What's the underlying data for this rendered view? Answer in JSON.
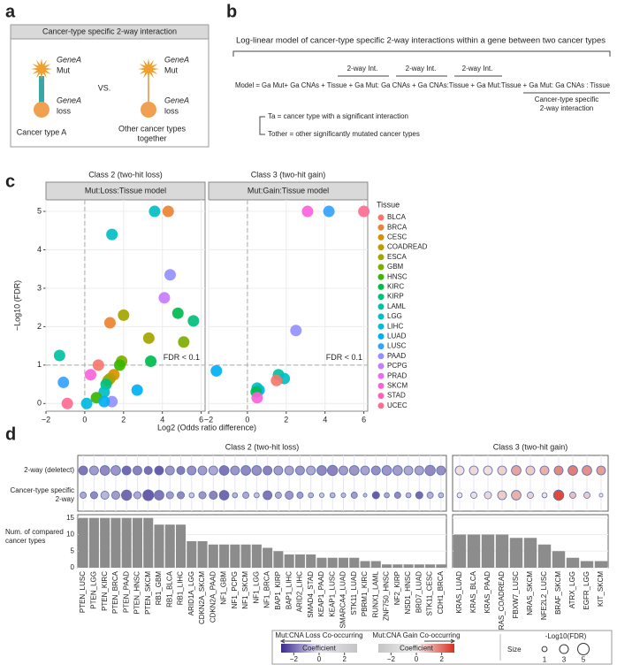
{
  "panel_a": {
    "label": "a",
    "header": "Cancer-type specific 2-way interaction",
    "left": {
      "mut_gene": "GeneA",
      "mut": "Mut",
      "loss_gene": "GeneA",
      "loss": "loss",
      "caption": [
        "Cancer type A"
      ]
    },
    "vs": "VS.",
    "right": {
      "mut_gene": "GeneA",
      "mut": "Mut",
      "loss_gene": "GeneA",
      "loss": "loss",
      "caption": [
        "Other cancer types",
        "together"
      ]
    }
  },
  "panel_b": {
    "label": "b",
    "title": "Log-linear model of cancer-type specific 2-way interactions within a gene between two cancer types",
    "int_labels": [
      "2-way Int.",
      "2-way Int.",
      "2-way Int."
    ],
    "model": "Model = Ga Mut+ Ga CNAs + Tissue + Ga Mut: Ga CNAs + Ga CNAs:Tissue + Ga Mut:Tissue + Ga Mut: Ga CNAs : Tissue",
    "specific": [
      "Cancer-type specific",
      "2-way interaction"
    ],
    "ta": "Ta = cancer type with a significant interaction",
    "tother": "Tother = other significantly mutated cancer types"
  },
  "panel_c_label": "c",
  "panel_d_label": "d",
  "chart_data": [
    {
      "type": "scatter",
      "xlabel": "Log2 (Odds ratio difference)",
      "ylabel": "−Log10 (FDR)",
      "xlim": [
        -2,
        6.2
      ],
      "ylim": [
        -0.2,
        5.3
      ],
      "xticks": [
        {
          "value": -2,
          "label": "−2"
        },
        0,
        2,
        4,
        6
      ],
      "yticks": [
        0,
        1,
        2,
        3,
        4,
        5
      ],
      "reference_lines": {
        "x": 0,
        "y": 1
      },
      "grid": true,
      "legend": {
        "title": "Tissue",
        "names": [
          "BLCA",
          "BRCA",
          "CESC",
          "COADREAD",
          "ESCA",
          "GBM",
          "HNSC",
          "KIRC",
          "KIRP",
          "LAML",
          "LGG",
          "LIHC",
          "LUAD",
          "LUSC",
          "PAAD",
          "PCPG",
          "PRAD",
          "SKCM",
          "STAD",
          "UCEC"
        ],
        "colors": [
          "#F8766D",
          "#EA8331",
          "#D89000",
          "#C09B00",
          "#A3A500",
          "#7CAE00",
          "#39B600",
          "#00BB4E",
          "#00BF7D",
          "#00C1A3",
          "#00BFC4",
          "#00BAE0",
          "#00B0F6",
          "#35A2FF",
          "#9590FF",
          "#C77CFF",
          "#E76BF3",
          "#FA62DB",
          "#FF62BC",
          "#FF6C91"
        ]
      },
      "facets": [
        {
          "title": "Class 2 (two-hit loss)",
          "strip": "Mut:Loss:Tissue model",
          "annotation": "FDR < 0.1",
          "x": [
            3.6,
            4.3,
            1.4,
            4.4,
            4.1,
            4.8,
            5.6,
            2.0,
            1.3,
            3.3,
            5.1,
            0.7,
            1.9,
            1.8,
            3.4,
            -1.3,
            -1.1,
            0.3,
            2.7,
            1.5,
            1.3,
            1.2,
            1.1,
            1.0,
            0.6,
            1.4,
            -0.9,
            0.1,
            1.0
          ],
          "y": [
            5.0,
            5.0,
            4.4,
            3.35,
            2.75,
            2.35,
            2.15,
            2.3,
            2.1,
            1.7,
            1.6,
            1.0,
            1.1,
            1.0,
            1.1,
            1.25,
            0.55,
            0.75,
            0.35,
            0.75,
            0.65,
            0.6,
            0.5,
            0.3,
            0.15,
            0.05,
            0.0,
            0.0,
            0.05
          ],
          "tissue": [
            "LGG",
            "BRCA",
            "LGG",
            "PAAD",
            "PCPG",
            "KIRC",
            "KIRP",
            "ESCA",
            "BRCA",
            "ESCA",
            "GBM",
            "BLCA",
            "GBM",
            "HNSC",
            "KIRC",
            "LAML",
            "LUSC",
            "SKCM",
            "LUAD",
            "CESC",
            "COADREAD",
            "ESCA",
            "KIRP",
            "LGG",
            "HNSC",
            "PAAD",
            "UCEC",
            "LIHC",
            "LUAD"
          ]
        },
        {
          "title": "Class 3 (two-hit gain)",
          "strip": "Mut:Gain:Tissue model",
          "annotation": "FDR < 0.1",
          "x": [
            6.0,
            3.1,
            4.2,
            2.5,
            1.6,
            1.9,
            1.5,
            -1.6,
            0.6,
            0.5,
            0.45,
            0.5
          ],
          "y": [
            5.0,
            5.0,
            5.0,
            1.9,
            0.75,
            0.65,
            0.6,
            0.85,
            0.35,
            0.4,
            0.3,
            0.15
          ],
          "tissue": [
            "UCEC",
            "SKCM",
            "LUSC",
            "PAAD",
            "LAML",
            "LGG",
            "BLCA",
            "LUAD",
            "LUAD",
            "LGG",
            "KIRC",
            "SKCM"
          ]
        }
      ]
    },
    {
      "type": "dotplot",
      "bar_label": [
        "Num. of compared",
        "cancer types"
      ],
      "bar_ylim": [
        0,
        16
      ],
      "bar_yticks": [
        0,
        5,
        10,
        15
      ],
      "bar_color": "#8c8c8c",
      "row_labels": [
        [
          "2-way (deletect)"
        ],
        [
          "Cancer-type specific",
          "2-way"
        ]
      ],
      "facets": [
        {
          "title": "Class 2 (two-hit loss)",
          "categories": [
            "PTEN_LUSC",
            "PTEN_LGG",
            "PTEN_KIRC",
            "PTEN_BRCA",
            "PTEN_PAAD",
            "PTEN_HNSC",
            "PTEN_SKCM",
            "RB1_GBM",
            "RB1_BLCA",
            "RB1_LIHC",
            "ARID1A_LGG",
            "CDKN2A_SKCM",
            "CDKN2A_PAAD",
            "NF1_GBM",
            "NF1_PCPG",
            "NF1_SKCM",
            "NF1_LGG",
            "NF1_BRCA",
            "BAP1_KIRP",
            "BAP1_LIHC",
            "ARID2_LIHC",
            "SMAD4_STAD",
            "KEAP1_PAAD",
            "KEAP1_LUSC",
            "SMARCA4_LUAD",
            "STK11_LUAD",
            "PBRM1_KIRC",
            "RUNX1_LAML",
            "ZNF750_HNSC",
            "NF2_KIRP",
            "NSD1_HNSC",
            "BRD7_LUAD",
            "STK11_CESC",
            "CDH1_BRCA"
          ],
          "rows": [
            {
              "coefficient": [
                -1.8,
                -1.2,
                -1.5,
                -1.3,
                -2.0,
                -1.6,
                -1.9,
                -2.2,
                -1.3,
                -1.7,
                -1.4,
                -1.2,
                -1.0,
                -1.8,
                -1.3,
                -1.5,
                -1.4,
                -1.6,
                -1.2,
                -1.1,
                -1.3,
                -1.0,
                -1.5,
                -1.6,
                -1.2,
                -1.3,
                -1.1,
                -1.4,
                -1.3,
                -1.2,
                -1.0,
                -1.1,
                -1.5,
                -1.4
              ],
              "size": [
                3,
                3,
                3.5,
                3.5,
                3,
                3,
                2.5,
                3,
                3,
                2.5,
                3,
                3,
                3,
                3.5,
                3,
                3.5,
                3.5,
                3,
                3,
                3,
                3,
                3,
                3.5,
                4,
                3,
                3.5,
                3,
                3,
                3.5,
                3.5,
                3,
                3,
                4,
                3
              ]
            },
            {
              "coefficient": [
                -1.0,
                -1.5,
                -0.8,
                -1.2,
                -2.0,
                -1.0,
                -2.2,
                -1.8,
                -1.2,
                -1.5,
                -0.5,
                -1.3,
                -1.6,
                -2.0,
                -0.8,
                -1.0,
                -0.6,
                -1.8,
                -1.0,
                -1.3,
                -1.2,
                -0.8,
                -0.5,
                -0.8,
                -0.7,
                -1.2,
                -0.6,
                -2.2,
                -1.0,
                -1.5,
                -0.8,
                -2.0,
                -0.9,
                -0.7
              ],
              "size": [
                1.5,
                2,
                2.5,
                2.5,
                4,
                2,
                4.5,
                3.5,
                2,
                2,
                1,
                2,
                2.5,
                3.5,
                1,
                1.5,
                1,
                3,
                1.5,
                2.5,
                1.5,
                1,
                0.8,
                1,
                0.8,
                1.5,
                0.5,
                2,
                1,
                1.5,
                1,
                2,
                1.5,
                1
              ]
            }
          ],
          "counts": [
            15,
            15,
            15,
            15,
            15,
            15,
            15,
            13,
            13,
            13,
            8,
            8,
            7,
            7,
            7,
            7,
            7,
            6,
            5,
            4,
            4,
            4,
            3,
            3,
            3,
            3,
            2,
            2,
            1,
            1,
            1,
            1,
            1,
            1
          ]
        },
        {
          "title": "Class 3 (two-hit gain)",
          "categories": [
            "KRAS_LUAD",
            "KRAS_BLCA",
            "KRAS_PAAD",
            "KRAS_COADREAD",
            "FBXW7_LUSC",
            "NRAS_SKCM",
            "NFE2L2_LUSC",
            "BRAF_SKCM",
            "ATRX_LGG",
            "EGFR_LGG",
            "KIT_SKCM"
          ],
          "rows": [
            {
              "coefficient": [
                0.3,
                0.4,
                0.3,
                0.5,
                1.2,
                0.6,
                1.0,
                1.6,
                1.8,
                1.5,
                1.3
              ],
              "size": [
                3,
                3,
                3,
                3,
                3.5,
                3,
                3,
                3,
                3.5,
                3.5,
                3
              ]
            },
            {
              "coefficient": [
                0.2,
                0.3,
                0.4,
                0.6,
                1.0,
                0.5,
                0.2,
                2.6,
                0.8,
                0.6,
                0.1
              ],
              "size": [
                1,
                1.5,
                2,
                3,
                3.5,
                1.5,
                1,
                4,
                1.5,
                1.5,
                0.5
              ]
            }
          ],
          "counts": [
            10,
            10,
            10,
            10,
            9,
            9,
            7,
            5,
            3,
            2,
            2
          ]
        }
      ],
      "color_legends": [
        {
          "title": "Mut:CNA Loss Co-occurring",
          "label": "Coefficient",
          "lim": [
            -3,
            3
          ],
          "ticks": [
            {
              "value": -2,
              "label": "−2"
            },
            0,
            2
          ],
          "colors": [
            "#3b2a8f",
            "#e9e7f3",
            "#c4c4c4"
          ]
        },
        {
          "title": "Mut:CNA Gain Co-occurring",
          "label": "Coefficient",
          "lim": [
            -3,
            3
          ],
          "ticks": [
            {
              "value": -2,
              "label": "−2"
            },
            0,
            2
          ],
          "colors": [
            "#c4c4c4",
            "#f2f2f2",
            "#d7301f"
          ]
        }
      ],
      "size_legend": {
        "title": "-Log10(FDR)",
        "label": "Size",
        "values": [
          1,
          3,
          5
        ]
      }
    }
  ]
}
